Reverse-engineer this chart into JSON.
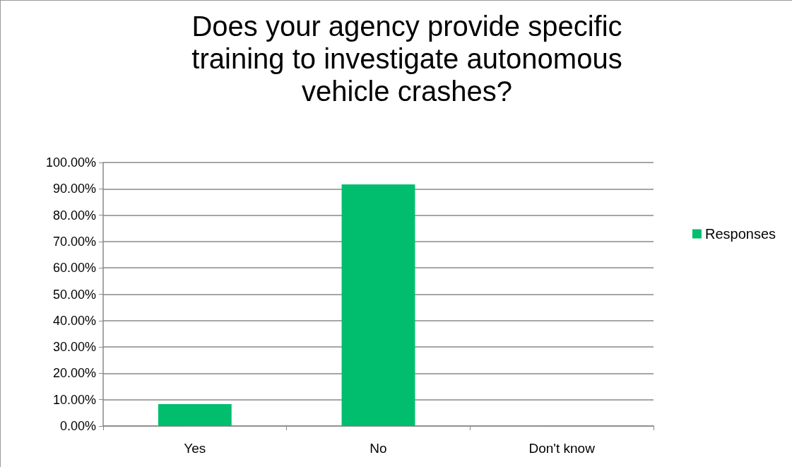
{
  "chart_data": {
    "type": "bar",
    "title": "Does your agency provide specific\ntraining to investigate autonomous\nvehicle crashes?",
    "categories": [
      "Yes",
      "No",
      "Don't know"
    ],
    "series": [
      {
        "name": "Responses",
        "color": "#00be6e",
        "values": [
          8.3,
          91.7,
          0
        ]
      }
    ],
    "ylim": [
      0,
      100
    ],
    "yticks": [
      {
        "value": 0,
        "label": "0.00%"
      },
      {
        "value": 10,
        "label": "10.00%"
      },
      {
        "value": 20,
        "label": "20.00%"
      },
      {
        "value": 30,
        "label": "30.00%"
      },
      {
        "value": 40,
        "label": "40.00%"
      },
      {
        "value": 50,
        "label": "50.00%"
      },
      {
        "value": 60,
        "label": "60.00%"
      },
      {
        "value": 70,
        "label": "70.00%"
      },
      {
        "value": 80,
        "label": "80.00%"
      },
      {
        "value": 90,
        "label": "90.00%"
      },
      {
        "value": 100,
        "label": "100.00%"
      }
    ],
    "grid": "y",
    "legend": "right"
  }
}
